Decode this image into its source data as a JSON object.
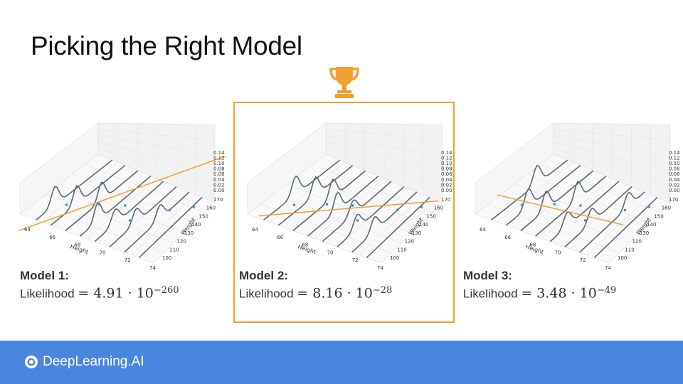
{
  "slide": {
    "title": "Picking the Right Model"
  },
  "axes": {
    "x_label": "Height",
    "y_label": "Weight",
    "x_ticks": [
      "64",
      "66",
      "68",
      "70",
      "72",
      "74"
    ],
    "y_ticks": [
      "100",
      "110",
      "120",
      "130",
      "140",
      "150",
      "160",
      "170"
    ],
    "z_ticks": [
      "0.00",
      "0.02",
      "0.04",
      "0.06",
      "0.08",
      "0.10",
      "0.12",
      "0.14"
    ]
  },
  "models": [
    {
      "label": "Model 1:",
      "likelihood_word": "Likelihood",
      "equation": "= 4.91 · 10",
      "exponent": "−260",
      "line": [
        [
          0.02,
          0.76
        ],
        [
          0.99,
          0.26
        ]
      ]
    },
    {
      "label": "Model 2:",
      "likelihood_word": "Likelihood",
      "equation": "= 8.16 · 10",
      "exponent": "−28",
      "line": [
        [
          0.08,
          0.66
        ],
        [
          0.92,
          0.56
        ]
      ]
    },
    {
      "label": "Model 3:",
      "likelihood_word": "Likelihood",
      "equation": "= 3.48 · 10",
      "exponent": "−49",
      "line": [
        [
          0.13,
          0.52
        ],
        [
          0.72,
          0.72
        ]
      ]
    }
  ],
  "winner_index": 1,
  "colors": {
    "accent": "#f0a030",
    "curve": "#5a6a72",
    "footer": "#4a86e0"
  },
  "footer": {
    "brand": "DeepLearning.AI"
  },
  "icons": {
    "trophy": "trophy-icon",
    "brand_logo": "deeplearning-logo-icon"
  }
}
